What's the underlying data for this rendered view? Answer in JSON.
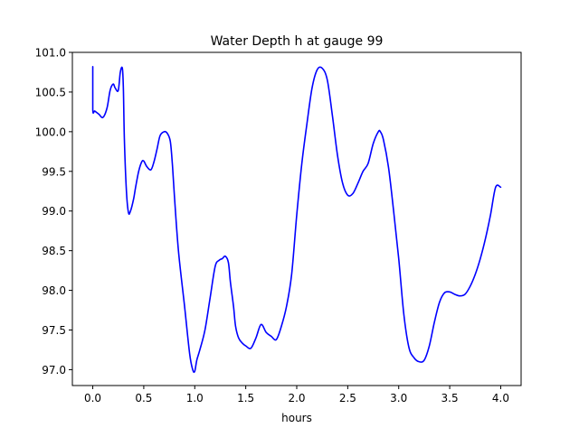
{
  "chart_data": {
    "type": "line",
    "title": "Water Depth h at gauge 99",
    "xlabel": "hours",
    "ylabel": "",
    "xlim": [
      -0.2,
      4.2
    ],
    "ylim": [
      96.8,
      101.0
    ],
    "xticks": [
      0.0,
      0.5,
      1.0,
      1.5,
      2.0,
      2.5,
      3.0,
      3.5,
      4.0
    ],
    "xtick_labels": [
      "0.0",
      "0.5",
      "1.0",
      "1.5",
      "2.0",
      "2.5",
      "3.0",
      "3.5",
      "4.0"
    ],
    "yticks": [
      97.0,
      97.5,
      98.0,
      98.5,
      99.0,
      99.5,
      100.0,
      100.5,
      101.0
    ],
    "ytick_labels": [
      "97.0",
      "97.5",
      "98.0",
      "98.5",
      "99.0",
      "99.5",
      "100.0",
      "100.5",
      "101.0"
    ],
    "grid": false,
    "series": [
      {
        "color": "#0000ff",
        "x": [
          0.0,
          0.0,
          0.02,
          0.06,
          0.1,
          0.14,
          0.17,
          0.2,
          0.22,
          0.25,
          0.27,
          0.29,
          0.3,
          0.31,
          0.33,
          0.35,
          0.37,
          0.4,
          0.42,
          0.45,
          0.48,
          0.5,
          0.53,
          0.57,
          0.6,
          0.63,
          0.66,
          0.7,
          0.73,
          0.76,
          0.78,
          0.8,
          0.84,
          0.9,
          0.95,
          0.98,
          1.0,
          1.02,
          1.05,
          1.1,
          1.15,
          1.2,
          1.24,
          1.27,
          1.3,
          1.33,
          1.35,
          1.38,
          1.4,
          1.43,
          1.47,
          1.5,
          1.55,
          1.6,
          1.65,
          1.7,
          1.75,
          1.8,
          1.85,
          1.9,
          1.95,
          2.0,
          2.05,
          2.1,
          2.15,
          2.2,
          2.25,
          2.3,
          2.35,
          2.4,
          2.45,
          2.5,
          2.55,
          2.6,
          2.65,
          2.7,
          2.75,
          2.8,
          2.82,
          2.85,
          2.9,
          2.95,
          3.0,
          3.05,
          3.1,
          3.15,
          3.2,
          3.25,
          3.3,
          3.35,
          3.4,
          3.45,
          3.5,
          3.55,
          3.6,
          3.65,
          3.7,
          3.75,
          3.8,
          3.85,
          3.9,
          3.95,
          4.0
        ],
        "y": [
          100.82,
          100.28,
          100.26,
          100.22,
          100.18,
          100.3,
          100.52,
          100.6,
          100.55,
          100.52,
          100.75,
          100.8,
          100.55,
          99.9,
          99.25,
          98.98,
          99.0,
          99.15,
          99.3,
          99.5,
          99.62,
          99.63,
          99.56,
          99.52,
          99.62,
          99.78,
          99.95,
          100.0,
          99.98,
          99.88,
          99.6,
          99.2,
          98.5,
          97.8,
          97.2,
          97.0,
          96.98,
          97.12,
          97.25,
          97.5,
          97.9,
          98.3,
          98.38,
          98.4,
          98.43,
          98.35,
          98.1,
          97.8,
          97.55,
          97.4,
          97.33,
          97.3,
          97.27,
          97.4,
          97.57,
          97.47,
          97.42,
          97.38,
          97.55,
          97.8,
          98.2,
          98.95,
          99.6,
          100.1,
          100.55,
          100.78,
          100.8,
          100.65,
          100.2,
          99.7,
          99.35,
          99.2,
          99.22,
          99.35,
          99.5,
          99.6,
          99.85,
          100.0,
          100.0,
          99.9,
          99.55,
          99.0,
          98.4,
          97.7,
          97.28,
          97.15,
          97.1,
          97.12,
          97.3,
          97.6,
          97.85,
          97.97,
          97.98,
          97.95,
          97.93,
          97.95,
          98.05,
          98.2,
          98.4,
          98.65,
          98.95,
          99.3,
          99.3
        ]
      }
    ]
  }
}
